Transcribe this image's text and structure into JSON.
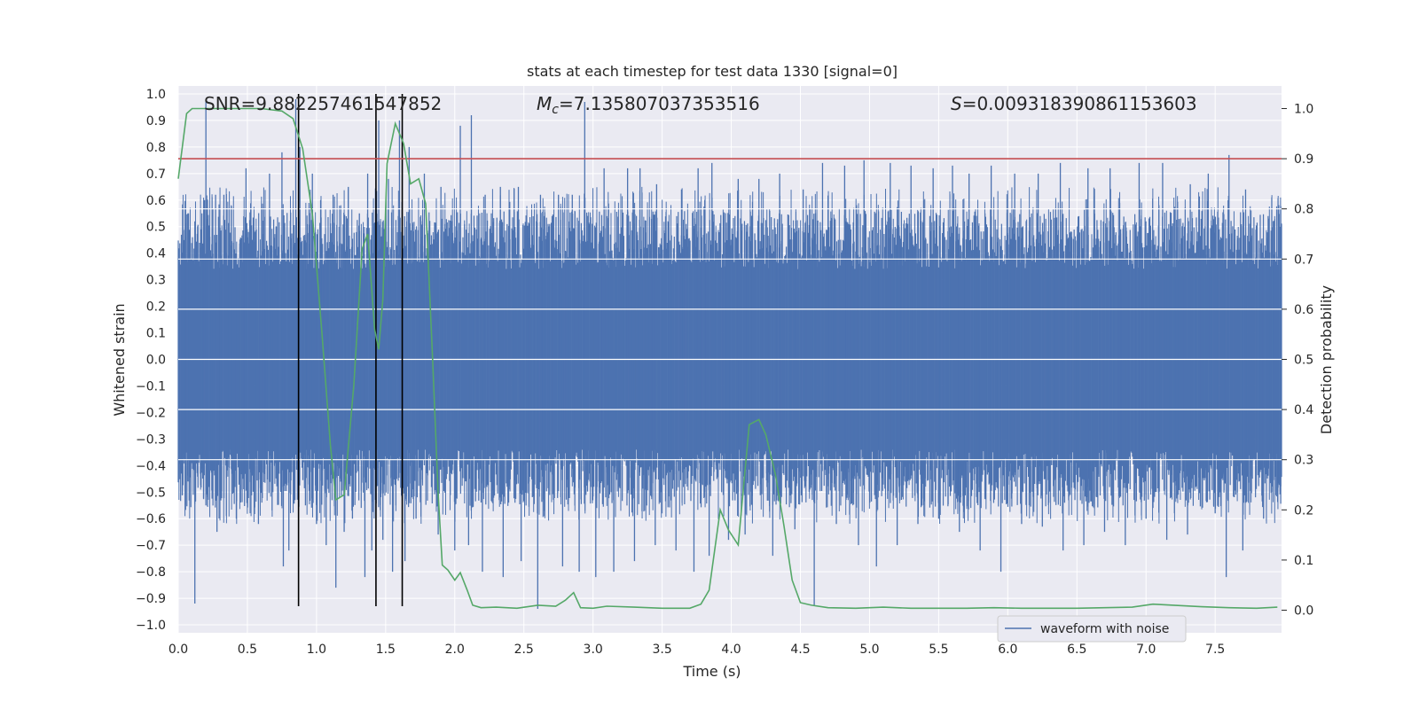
{
  "chart_data": {
    "type": "line",
    "title": "stats at each timestep for test data 1330 [signal=0]",
    "xlabel": "Time (s)",
    "ylabel": "Whitened strain",
    "y2label": "Detection probability",
    "xlim": [
      0.0,
      7.98
    ],
    "ylim": [
      -1.03,
      1.03
    ],
    "y2lim": [
      -0.045,
      1.045
    ],
    "x_ticks": [
      "0.0",
      "0.5",
      "1.0",
      "1.5",
      "2.0",
      "2.5",
      "3.0",
      "3.5",
      "4.0",
      "4.5",
      "5.0",
      "5.5",
      "6.0",
      "6.5",
      "7.0",
      "7.5"
    ],
    "y_ticks": [
      "1.0",
      "0.9",
      "0.8",
      "0.7",
      "0.6",
      "0.5",
      "0.4",
      "0.3",
      "0.2",
      "0.1",
      "0.0",
      "−0.1",
      "−0.2",
      "−0.3",
      "−0.4",
      "−0.5",
      "−0.6",
      "−0.7",
      "−0.8",
      "−0.9",
      "−1.0"
    ],
    "y2_ticks": [
      "1.0",
      "0.9",
      "0.8",
      "0.7",
      "0.6",
      "0.5",
      "0.4",
      "0.3",
      "0.2",
      "0.1",
      "0.0"
    ],
    "grid": true,
    "legend_position": "lower-right",
    "annotations": {
      "snr": "SNR=9.882257461547852",
      "mc_symbol": "M",
      "mc_sub": "c",
      "mc_value": "=7.135807037353516",
      "s_symbol": "S",
      "s_value": "=0.009318390861153603"
    },
    "threshold": 0.9,
    "vlines": [
      0.87,
      1.43,
      1.62
    ],
    "series": [
      {
        "name": "waveform with noise",
        "axis": "left",
        "description_free": true,
        "envelope_core": 0.34,
        "peaks": [
          [
            0.07,
            0.55
          ],
          [
            0.12,
            0.52
          ],
          [
            0.19,
            0.6
          ],
          [
            0.2,
            0.98
          ],
          [
            0.27,
            0.62
          ],
          [
            0.33,
            0.62
          ],
          [
            0.49,
            0.72
          ],
          [
            0.66,
            0.7
          ],
          [
            0.75,
            0.78
          ],
          [
            0.85,
            0.98
          ],
          [
            0.88,
            0.8
          ],
          [
            0.97,
            0.7
          ],
          [
            1.03,
            0.6
          ],
          [
            1.12,
            0.62
          ],
          [
            1.23,
            0.65
          ],
          [
            1.31,
            0.55
          ],
          [
            1.37,
            0.7
          ],
          [
            1.45,
            0.9
          ],
          [
            1.52,
            0.68
          ],
          [
            1.6,
            0.9
          ],
          [
            1.67,
            0.8
          ],
          [
            1.78,
            0.7
          ],
          [
            1.9,
            0.65
          ],
          [
            2.04,
            0.88
          ],
          [
            2.12,
            0.92
          ],
          [
            2.22,
            0.62
          ],
          [
            2.33,
            0.65
          ],
          [
            2.46,
            0.65
          ],
          [
            2.62,
            0.62
          ],
          [
            2.75,
            0.62
          ],
          [
            2.85,
            0.62
          ],
          [
            2.94,
            0.97
          ],
          [
            3.08,
            0.72
          ],
          [
            3.25,
            0.72
          ],
          [
            3.34,
            0.72
          ],
          [
            3.46,
            0.66
          ],
          [
            3.64,
            0.64
          ],
          [
            3.76,
            0.72
          ],
          [
            3.86,
            0.74
          ],
          [
            4.05,
            0.68
          ],
          [
            4.2,
            0.68
          ],
          [
            4.35,
            0.7
          ],
          [
            4.52,
            0.64
          ],
          [
            4.66,
            0.74
          ],
          [
            4.82,
            0.73
          ],
          [
            4.96,
            0.75
          ],
          [
            5.15,
            0.74
          ],
          [
            5.3,
            0.73
          ],
          [
            5.46,
            0.72
          ],
          [
            5.6,
            0.73
          ],
          [
            5.72,
            0.7
          ],
          [
            5.88,
            0.73
          ],
          [
            6.05,
            0.7
          ],
          [
            6.22,
            0.7
          ],
          [
            6.38,
            0.74
          ],
          [
            6.58,
            0.72
          ],
          [
            6.74,
            0.72
          ],
          [
            6.95,
            0.74
          ],
          [
            7.12,
            0.74
          ],
          [
            7.32,
            0.66
          ],
          [
            7.45,
            0.7
          ],
          [
            7.6,
            0.77
          ],
          [
            7.72,
            0.64
          ],
          [
            7.92,
            0.52
          ]
        ],
        "troughs": [
          [
            0.07,
            -0.46
          ],
          [
            0.12,
            -0.92
          ],
          [
            0.2,
            -0.55
          ],
          [
            0.28,
            -0.65
          ],
          [
            0.42,
            -0.6
          ],
          [
            0.58,
            -0.62
          ],
          [
            0.76,
            -0.78
          ],
          [
            0.8,
            -0.72
          ],
          [
            0.92,
            -0.55
          ],
          [
            1.0,
            -0.62
          ],
          [
            1.07,
            -0.7
          ],
          [
            1.14,
            -0.86
          ],
          [
            1.2,
            -0.65
          ],
          [
            1.26,
            -0.6
          ],
          [
            1.35,
            -0.82
          ],
          [
            1.4,
            -0.72
          ],
          [
            1.48,
            -0.68
          ],
          [
            1.55,
            -0.8
          ],
          [
            1.64,
            -0.76
          ],
          [
            1.72,
            -0.6
          ],
          [
            1.88,
            -0.66
          ],
          [
            2.0,
            -0.72
          ],
          [
            2.1,
            -0.7
          ],
          [
            2.2,
            -0.8
          ],
          [
            2.35,
            -0.82
          ],
          [
            2.48,
            -0.76
          ],
          [
            2.6,
            -0.94
          ],
          [
            2.78,
            -0.78
          ],
          [
            2.9,
            -0.8
          ],
          [
            3.02,
            -0.82
          ],
          [
            3.15,
            -0.8
          ],
          [
            3.3,
            -0.76
          ],
          [
            3.45,
            -0.7
          ],
          [
            3.6,
            -0.72
          ],
          [
            3.73,
            -0.8
          ],
          [
            3.84,
            -0.74
          ],
          [
            3.98,
            -0.68
          ],
          [
            4.1,
            -0.66
          ],
          [
            4.3,
            -0.74
          ],
          [
            4.46,
            -0.64
          ],
          [
            4.6,
            -0.93
          ],
          [
            4.76,
            -0.62
          ],
          [
            4.92,
            -0.7
          ],
          [
            5.05,
            -0.78
          ],
          [
            5.2,
            -0.7
          ],
          [
            5.35,
            -0.62
          ],
          [
            5.5,
            -0.6
          ],
          [
            5.65,
            -0.65
          ],
          [
            5.8,
            -0.72
          ],
          [
            5.95,
            -0.8
          ],
          [
            6.1,
            -0.62
          ],
          [
            6.25,
            -0.63
          ],
          [
            6.4,
            -0.72
          ],
          [
            6.55,
            -0.7
          ],
          [
            6.7,
            -0.65
          ],
          [
            6.85,
            -0.7
          ],
          [
            7.0,
            -0.6
          ],
          [
            7.15,
            -0.68
          ],
          [
            7.3,
            -0.66
          ],
          [
            7.5,
            -0.58
          ],
          [
            7.58,
            -0.82
          ],
          [
            7.7,
            -0.72
          ],
          [
            7.85,
            -0.6
          ]
        ]
      },
      {
        "name": "",
        "axis": "right",
        "x": [
          0.0,
          0.06,
          0.1,
          0.2,
          0.4,
          0.6,
          0.75,
          0.83,
          0.9,
          0.97,
          1.04,
          1.1,
          1.14,
          1.2,
          1.27,
          1.33,
          1.37,
          1.42,
          1.45,
          1.48,
          1.51,
          1.57,
          1.63,
          1.68,
          1.74,
          1.79,
          1.84,
          1.88,
          1.91,
          1.95,
          2.0,
          2.04,
          2.09,
          2.13,
          2.19,
          2.3,
          2.45,
          2.6,
          2.73,
          2.8,
          2.86,
          2.91,
          3.0,
          3.1,
          3.3,
          3.5,
          3.7,
          3.78,
          3.84,
          3.92,
          3.98,
          4.05,
          4.13,
          4.2,
          4.25,
          4.32,
          4.38,
          4.44,
          4.5,
          4.58,
          4.7,
          4.9,
          5.1,
          5.3,
          5.5,
          5.7,
          5.9,
          6.1,
          6.3,
          6.5,
          6.7,
          6.9,
          7.05,
          7.2,
          7.4,
          7.6,
          7.8,
          7.95
        ],
        "y": [
          0.86,
          0.99,
          1.0,
          1.0,
          1.0,
          1.0,
          0.995,
          0.98,
          0.92,
          0.79,
          0.55,
          0.33,
          0.22,
          0.23,
          0.45,
          0.72,
          0.75,
          0.56,
          0.52,
          0.62,
          0.89,
          0.97,
          0.93,
          0.85,
          0.86,
          0.81,
          0.5,
          0.23,
          0.09,
          0.08,
          0.06,
          0.075,
          0.04,
          0.01,
          0.005,
          0.006,
          0.004,
          0.01,
          0.008,
          0.02,
          0.035,
          0.005,
          0.004,
          0.008,
          0.006,
          0.004,
          0.004,
          0.012,
          0.04,
          0.2,
          0.16,
          0.13,
          0.37,
          0.38,
          0.35,
          0.27,
          0.17,
          0.06,
          0.015,
          0.01,
          0.005,
          0.004,
          0.006,
          0.004,
          0.004,
          0.004,
          0.005,
          0.004,
          0.004,
          0.004,
          0.005,
          0.006,
          0.012,
          0.01,
          0.007,
          0.005,
          0.004,
          0.006
        ]
      }
    ],
    "colors": {
      "waveform": "#4c72b0",
      "probability": "#55a868",
      "threshold": "#c44e52",
      "vlines": "#000000",
      "plot_bg": "#eaeaf2",
      "grid": "#ffffff"
    }
  }
}
